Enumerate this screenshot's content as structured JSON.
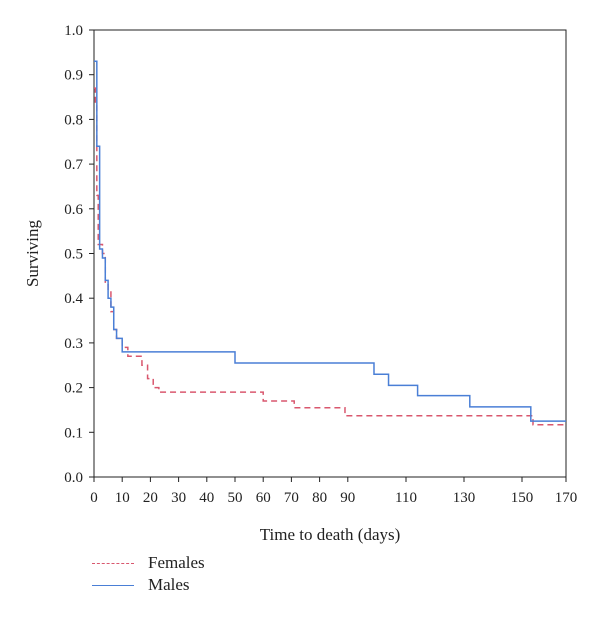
{
  "chart_data": {
    "type": "line",
    "step": true,
    "xlabel": "Time to death (days)",
    "ylabel": "Surviving",
    "xlim": [
      0,
      170
    ],
    "ylim": [
      0,
      1.0
    ],
    "x_ticks": [
      "0",
      "10",
      "20",
      "30",
      "40",
      "50",
      "60",
      "70",
      "80",
      "90",
      "110",
      "130",
      "150",
      "170"
    ],
    "y_ticks": [
      "0.0",
      "0.1",
      "0.2",
      "0.3",
      "0.4",
      "0.5",
      "0.6",
      "0.7",
      "0.8",
      "0.9",
      "1.0"
    ],
    "y_tick_values": [
      0,
      0.1,
      0.2,
      0.3,
      0.4,
      0.5,
      0.6,
      0.7,
      0.8,
      0.9,
      1.0
    ],
    "grid": false,
    "legend_position": "bottom-left",
    "series": [
      {
        "name": "Females",
        "color": "#d9576e",
        "dash": "dashed",
        "points": [
          [
            0,
            0.87
          ],
          [
            0.5,
            0.83
          ],
          [
            1,
            0.63
          ],
          [
            1.5,
            0.52
          ],
          [
            3,
            0.5
          ],
          [
            4,
            0.43
          ],
          [
            5,
            0.42
          ],
          [
            6,
            0.37
          ],
          [
            7,
            0.33
          ],
          [
            8,
            0.31
          ],
          [
            10,
            0.29
          ],
          [
            12,
            0.27
          ],
          [
            17,
            0.25
          ],
          [
            19,
            0.22
          ],
          [
            21,
            0.2
          ],
          [
            23,
            0.19
          ],
          [
            60,
            0.17
          ],
          [
            71,
            0.155
          ],
          [
            89,
            0.137
          ],
          [
            155,
            0.117
          ],
          [
            170,
            0.117
          ]
        ]
      },
      {
        "name": "Males",
        "color": "#4a7fd6",
        "dash": "solid",
        "points": [
          [
            0,
            0.93
          ],
          [
            1,
            0.74
          ],
          [
            2,
            0.51
          ],
          [
            3,
            0.49
          ],
          [
            4,
            0.44
          ],
          [
            5,
            0.4
          ],
          [
            6,
            0.38
          ],
          [
            7,
            0.33
          ],
          [
            8,
            0.31
          ],
          [
            10,
            0.28
          ],
          [
            50,
            0.255
          ],
          [
            99,
            0.23
          ],
          [
            104,
            0.205
          ],
          [
            114,
            0.182
          ],
          [
            132,
            0.157
          ],
          [
            154,
            0.125
          ],
          [
            170,
            0.125
          ]
        ]
      }
    ]
  },
  "legend": {
    "items": [
      {
        "label": "Females",
        "color": "#d9576e",
        "dash": "dashed"
      },
      {
        "label": "Males",
        "color": "#4a7fd6",
        "dash": "solid"
      }
    ]
  }
}
